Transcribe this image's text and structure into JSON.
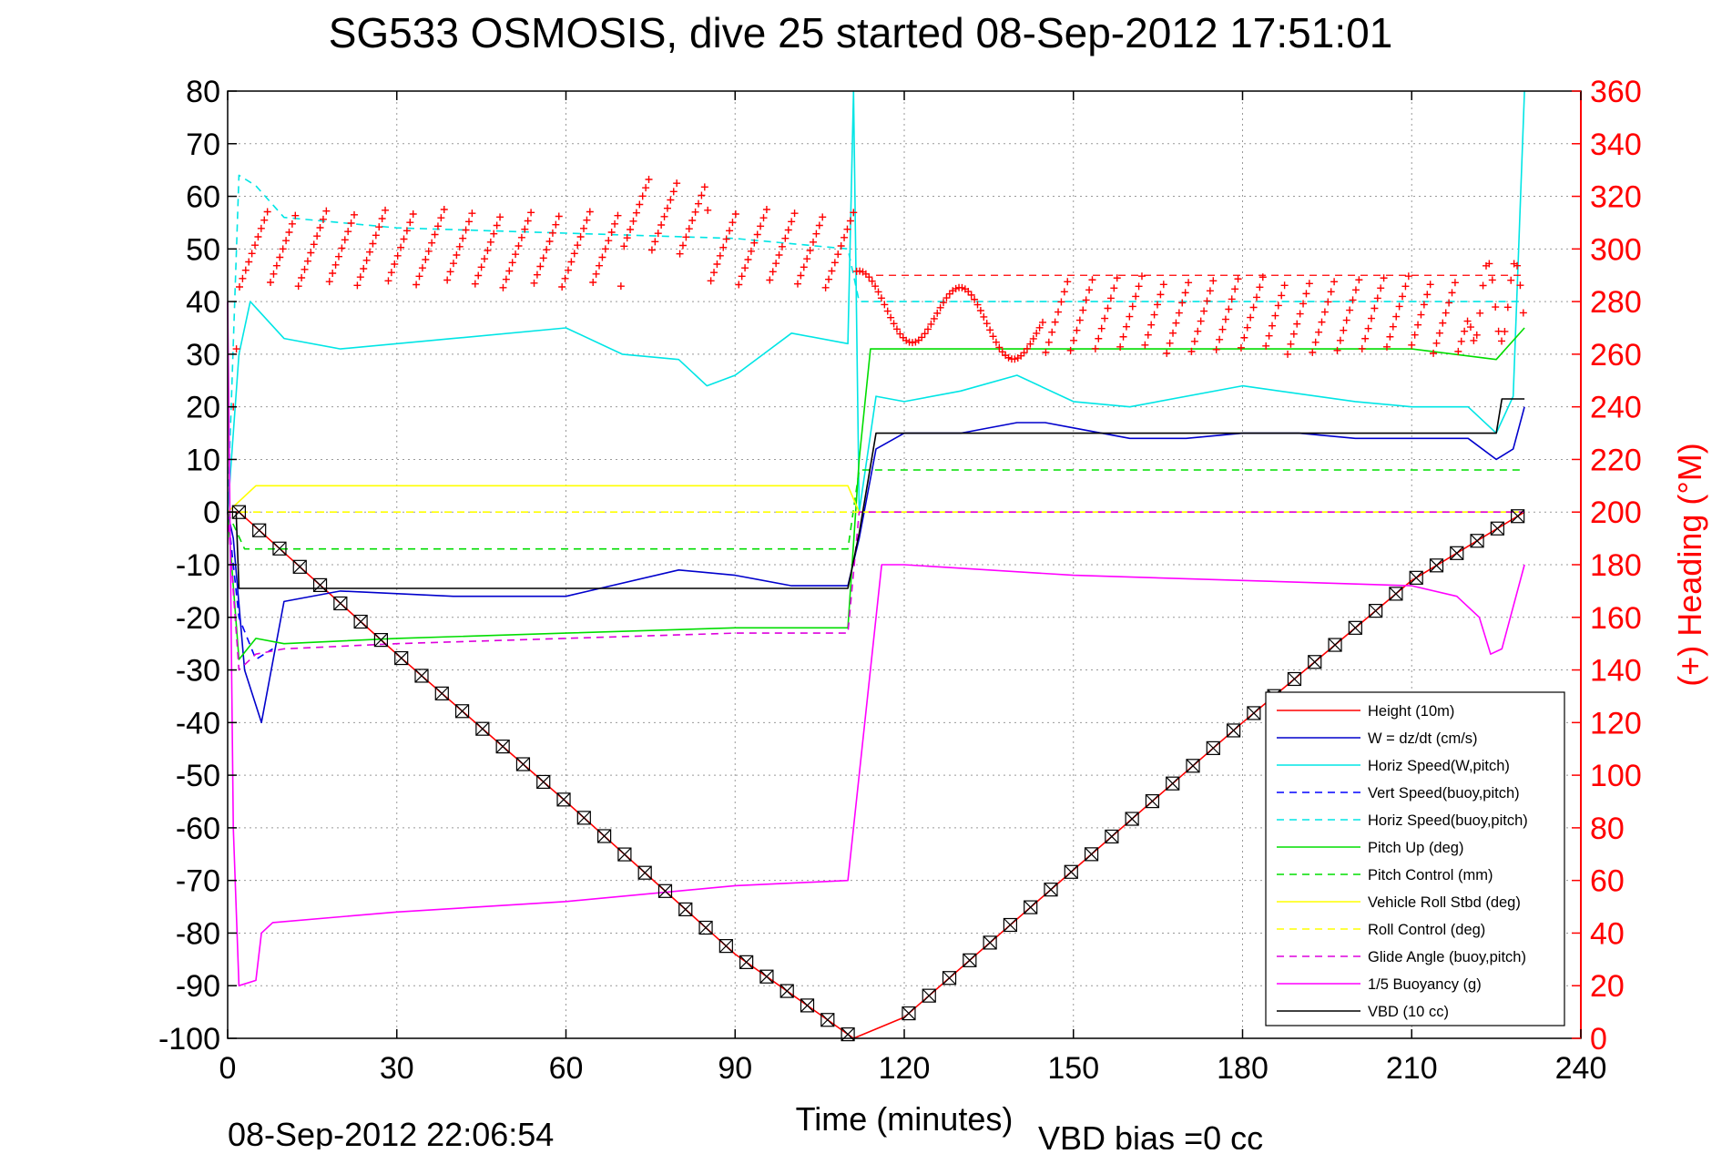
{
  "chart_data": {
    "type": "line",
    "title": "SG533 OSMOSIS, dive 25 started 08-Sep-2012 17:51:01",
    "xlabel": "Time (minutes)",
    "ylabel": "",
    "ylabel_right": "(+) Heading (°M)",
    "footer_left": "08-Sep-2012 22:06:54",
    "footer_right": "VBD bias =0 cc",
    "xlim": [
      0,
      240
    ],
    "ylim": [
      -100,
      80
    ],
    "ylim_right": [
      0,
      360
    ],
    "xticks": [
      0,
      30,
      60,
      90,
      120,
      150,
      180,
      210,
      240
    ],
    "yticks": [
      80,
      70,
      60,
      50,
      40,
      30,
      20,
      10,
      0,
      -10,
      -20,
      -30,
      -40,
      -50,
      -60,
      -70,
      -80,
      -90,
      -100
    ],
    "yticks_right": [
      360,
      340,
      320,
      300,
      280,
      260,
      240,
      220,
      200,
      180,
      160,
      140,
      120,
      100,
      80,
      60,
      40,
      20,
      0
    ],
    "grid": true,
    "legend_position": "bottom-right",
    "series": [
      {
        "name": "Height (10m)",
        "color": "#ff0000",
        "style": "solid",
        "x": [
          0,
          2,
          10,
          30,
          60,
          90,
          111,
          120,
          150,
          180,
          210,
          230
        ],
        "y": [
          0,
          0,
          -7.7,
          -27,
          -55,
          -84,
          -100,
          -96,
          -68,
          -40,
          -13,
          0
        ]
      },
      {
        "name": "W = dz/dt (cm/s)",
        "color": "#0000cc",
        "style": "solid",
        "x": [
          0,
          1,
          3,
          6,
          10,
          20,
          40,
          60,
          80,
          90,
          100,
          110,
          112,
          115,
          120,
          130,
          140,
          145,
          150,
          160,
          170,
          180,
          190,
          200,
          210,
          220,
          225,
          228,
          230
        ],
        "y": [
          0,
          -5,
          -30,
          -40,
          -17,
          -15,
          -16,
          -16,
          -11,
          -12,
          -14,
          -14,
          -5,
          12,
          15,
          15,
          17,
          17,
          16,
          14,
          14,
          15,
          15,
          14,
          14,
          14,
          10,
          12,
          20
        ]
      },
      {
        "name": "Horiz Speed(W,pitch)",
        "color": "#00e5e5",
        "style": "solid",
        "x": [
          0,
          2,
          4,
          10,
          20,
          40,
          60,
          70,
          80,
          85,
          90,
          100,
          110,
          111,
          112,
          115,
          120,
          130,
          140,
          150,
          160,
          180,
          200,
          210,
          220,
          225,
          228,
          230
        ],
        "y": [
          0,
          30,
          40,
          33,
          31,
          33,
          35,
          30,
          29,
          24,
          26,
          34,
          32,
          80,
          0,
          22,
          21,
          23,
          26,
          21,
          20,
          24,
          21,
          20,
          20,
          15,
          22,
          80
        ]
      },
      {
        "name": "Vert Speed(buoy,pitch)",
        "color": "#0000ff",
        "style": "dashed",
        "x": [
          0,
          2,
          5,
          8
        ],
        "y": [
          0,
          -20,
          -28,
          -26
        ]
      },
      {
        "name": "Horiz Speed(buoy,pitch)",
        "color": "#00e5e5",
        "style": "dashed",
        "x": [
          0,
          2,
          5,
          10,
          30,
          60,
          90,
          110,
          112,
          230
        ],
        "y": [
          0,
          64,
          62,
          56,
          54,
          53,
          52,
          50,
          40,
          40
        ]
      },
      {
        "name": "Pitch Up (deg)",
        "color": "#00dd00",
        "style": "solid",
        "x": [
          0,
          2,
          5,
          10,
          30,
          60,
          90,
          110,
          112,
          114,
          120,
          150,
          180,
          210,
          225,
          230
        ],
        "y": [
          0,
          -28,
          -24,
          -25,
          -24,
          -23,
          -22,
          -22,
          10,
          31,
          31,
          31,
          31,
          31,
          29,
          35
        ]
      },
      {
        "name": "Pitch Control (mm)",
        "color": "#00dd00",
        "style": "dashed",
        "x": [
          0,
          3,
          110,
          112,
          230
        ],
        "y": [
          0,
          -7,
          -7,
          8,
          8
        ]
      },
      {
        "name": "Vehicle Roll Stbd (deg)",
        "color": "#ffff00",
        "style": "solid",
        "x": [
          0,
          5,
          55,
          110,
          112,
          230
        ],
        "y": [
          0,
          5,
          5,
          5,
          0,
          0
        ]
      },
      {
        "name": "Roll Control (deg)",
        "color": "#ffff00",
        "style": "dashed",
        "x": [
          0,
          230
        ],
        "y": [
          0,
          0
        ]
      },
      {
        "name": "Glide Angle (buoy,pitch)",
        "color": "#dd00dd",
        "style": "dashed",
        "x": [
          0,
          2,
          5,
          10,
          30,
          60,
          90,
          110,
          112,
          230
        ],
        "y": [
          0,
          -30,
          -27,
          -26,
          -25,
          -24,
          -23,
          -23,
          0,
          0
        ]
      },
      {
        "name": "1/5 Buoyancy (g)",
        "color": "#ff00ff",
        "style": "solid",
        "x": [
          0,
          1,
          2,
          5,
          6,
          8,
          30,
          60,
          90,
          110,
          116,
          120,
          150,
          180,
          210,
          218,
          222,
          224,
          226,
          228,
          230
        ],
        "y": [
          40,
          -60,
          -90,
          -89,
          -80,
          -78,
          -76,
          -74,
          -71,
          -70,
          -10,
          -10,
          -12,
          -13,
          -14,
          -16,
          -20,
          -27,
          -26,
          -18,
          -10
        ]
      },
      {
        "name": "VBD (10 cc)",
        "color": "#000000",
        "style": "solid",
        "x": [
          0,
          1.5,
          2,
          110,
          112,
          115,
          225,
          226,
          230
        ],
        "y": [
          0,
          0,
          -14.5,
          -14.5,
          -4,
          15,
          15,
          21.5,
          21.5
        ]
      }
    ],
    "heading_series": {
      "name": "(+) Heading (°M)",
      "color": "#ff0000",
      "marker": "+",
      "axis": "right",
      "climb_reference_deg": 290
    }
  },
  "legend": {
    "items": [
      {
        "label": "Height (10m)",
        "color": "#ff0000",
        "style": "solid"
      },
      {
        "label": "W = dz/dt (cm/s)",
        "color": "#0000cc",
        "style": "solid"
      },
      {
        "label": "Horiz Speed(W,pitch)",
        "color": "#00e5e5",
        "style": "solid"
      },
      {
        "label": "Vert Speed(buoy,pitch)",
        "color": "#0000ff",
        "style": "dashed"
      },
      {
        "label": "Horiz Speed(buoy,pitch)",
        "color": "#00e5e5",
        "style": "dashed"
      },
      {
        "label": "Pitch Up (deg)",
        "color": "#00dd00",
        "style": "solid"
      },
      {
        "label": "Pitch Control (mm)",
        "color": "#00dd00",
        "style": "dashed"
      },
      {
        "label": "Vehicle Roll Stbd (deg)",
        "color": "#ffff00",
        "style": "solid"
      },
      {
        "label": "Roll Control (deg)",
        "color": "#ffff00",
        "style": "dashed"
      },
      {
        "label": "Glide Angle (buoy,pitch)",
        "color": "#dd00dd",
        "style": "dashed"
      },
      {
        "label": "1/5 Buoyancy (g)",
        "color": "#ff00ff",
        "style": "solid"
      },
      {
        "label": "VBD (10 cc)",
        "color": "#000000",
        "style": "solid"
      }
    ]
  }
}
